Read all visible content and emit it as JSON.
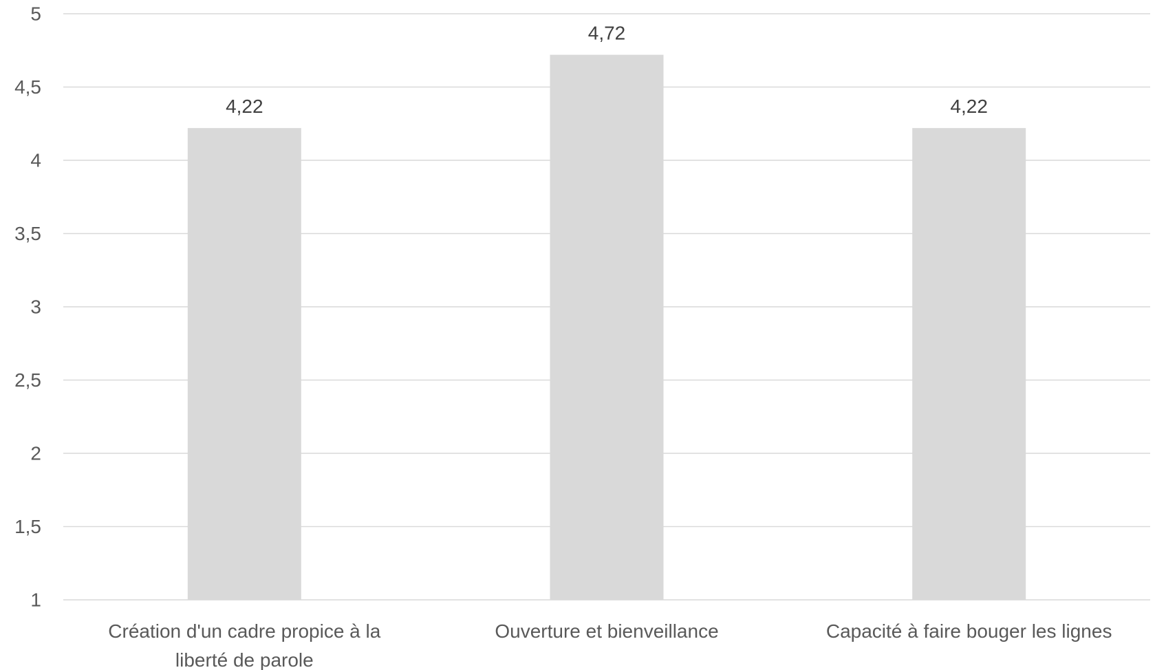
{
  "chart_data": {
    "type": "bar",
    "title": "",
    "xlabel": "",
    "ylabel": "",
    "ylim": [
      1,
      5
    ],
    "y_ticks": [
      "1",
      "1,5",
      "2",
      "2,5",
      "3",
      "3,5",
      "4",
      "4,5",
      "5"
    ],
    "y_tick_values": [
      1,
      1.5,
      2,
      2.5,
      3,
      3.5,
      4,
      4.5,
      5
    ],
    "categories": [
      [
        "Création d'un cadre propice à la",
        "liberté de parole"
      ],
      [
        "Ouverture et bienveillance"
      ],
      [
        "Capacité à faire bouger les lignes"
      ]
    ],
    "values": [
      4.22,
      4.72,
      4.22
    ],
    "value_labels": [
      "4,22",
      "4,72",
      "4,22"
    ],
    "bar_color": "#d9d9d9",
    "grid": true,
    "legend": "none"
  }
}
